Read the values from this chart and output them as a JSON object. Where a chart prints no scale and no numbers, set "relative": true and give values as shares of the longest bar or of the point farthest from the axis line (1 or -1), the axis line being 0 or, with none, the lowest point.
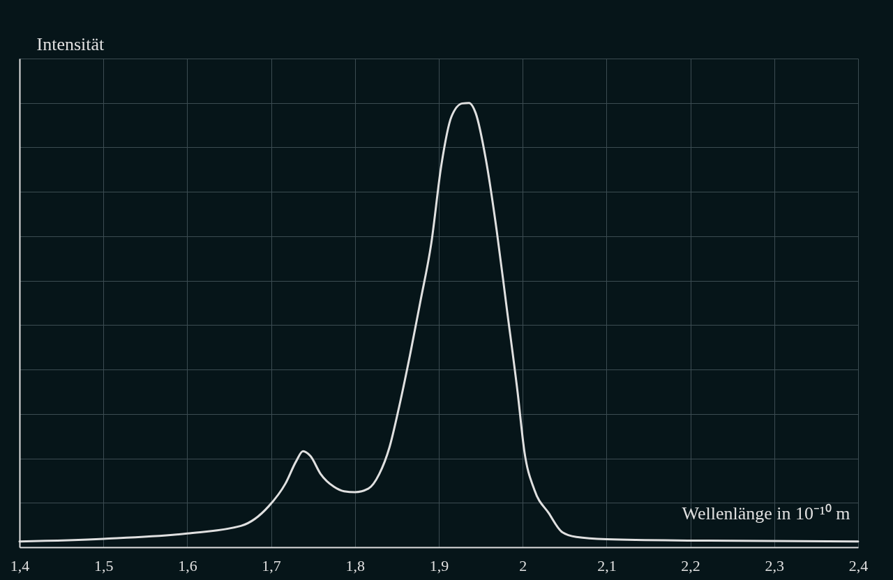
{
  "chart_data": {
    "type": "line",
    "relative": true,
    "xlabel": "Wellenlänge in 10⁻¹⁰ m",
    "ylabel": "Intensität",
    "xlim": [
      1.4,
      2.4
    ],
    "xticks": [
      {
        "value": 1.4,
        "label": "1,4"
      },
      {
        "value": 1.5,
        "label": "1,5"
      },
      {
        "value": 1.6,
        "label": "1,6"
      },
      {
        "value": 1.7,
        "label": "1,7"
      },
      {
        "value": 1.8,
        "label": "1,8"
      },
      {
        "value": 1.9,
        "label": "1,9"
      },
      2,
      {
        "value": 2.1,
        "label": "2,1"
      },
      {
        "value": 2.2,
        "label": "2,2"
      },
      {
        "value": 2.3,
        "label": "2,3"
      },
      {
        "value": 2.4,
        "label": "2,4"
      }
    ],
    "x": [
      1.4,
      1.5,
      1.6,
      1.664,
      1.697,
      1.717,
      1.73,
      1.738,
      1.747,
      1.759,
      1.775,
      1.787,
      1.8,
      1.816,
      1.829,
      1.841,
      1.853,
      1.866,
      1.878,
      1.891,
      1.903,
      1.915,
      1.928,
      1.936,
      1.944,
      1.956,
      1.969,
      1.981,
      1.994,
      2.002,
      2.014,
      2.031,
      2.047,
      2.064,
      2.1,
      2.2,
      2.4
    ],
    "series": [
      {
        "color": "#e0e0e0",
        "values": [
          0.013,
          0.019,
          0.031,
          0.048,
          0.092,
          0.143,
          0.194,
          0.216,
          0.205,
          0.165,
          0.136,
          0.126,
          0.124,
          0.132,
          0.165,
          0.224,
          0.319,
          0.436,
          0.553,
          0.684,
          0.86,
          0.969,
          0.999,
          1,
          0.977,
          0.874,
          0.713,
          0.538,
          0.348,
          0.216,
          0.129,
          0.077,
          0.034,
          0.023,
          0.018,
          0.015,
          0.013
        ]
      }
    ],
    "grid": true,
    "marker": "none",
    "line_style": "solid",
    "legend": false
  }
}
